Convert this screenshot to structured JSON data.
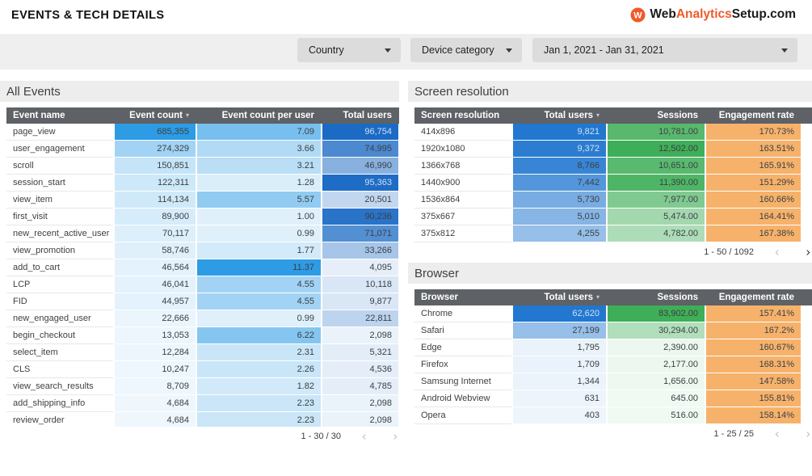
{
  "page": {
    "title": "EVENTS & TECH DETAILS"
  },
  "logo": {
    "icon": "w-badge",
    "segments": [
      {
        "text": "Web",
        "color": "#1b1b1b"
      },
      {
        "text": "Analytics",
        "color": "#f05a28"
      },
      {
        "text": "Setup",
        "color": "#1b1b1b"
      },
      {
        "text": ".com",
        "color": "#1b1b1b"
      }
    ]
  },
  "filters": {
    "country": {
      "label": "Country"
    },
    "device": {
      "label": "Device category"
    },
    "date_range": {
      "label": "Jan 1, 2021 - Jan 31, 2021"
    }
  },
  "colors": {
    "table_header_bg": "#5e6165",
    "section_band_bg": "#ededed",
    "filter_bar_bg": "#efefef",
    "dropdown_bg": "#dcdcdc",
    "heat_blue_bright": "#2d9ce5",
    "heat_blue_dark": "#1b6ac4",
    "heat_blue_right": "#2277d0",
    "heat_green": "#3fae58",
    "heat_orange": "#f6b26b",
    "brand_orange": "#f05a28"
  },
  "sections": {
    "all_events": {
      "title": "All Events",
      "columns": [
        {
          "label": "Event name",
          "align": "left"
        },
        {
          "label": "Event count",
          "align": "right",
          "heat": "heat_blue_bright",
          "sorted": true
        },
        {
          "label": "Event count per user",
          "align": "right",
          "heat": "heat_blue_bright"
        },
        {
          "label": "Total users",
          "align": "right",
          "heat": "heat_blue_dark",
          "light_text_threshold": 0.95
        }
      ],
      "rows": [
        [
          "page_view",
          "685,355",
          "7.09",
          "96,754"
        ],
        [
          "user_engagement",
          "274,329",
          "3.66",
          "74,995"
        ],
        [
          "scroll",
          "150,851",
          "3.21",
          "46,990"
        ],
        [
          "session_start",
          "122,311",
          "1.28",
          "95,363"
        ],
        [
          "view_item",
          "114,134",
          "5.57",
          "20,501"
        ],
        [
          "first_visit",
          "89,900",
          "1.00",
          "90,236"
        ],
        [
          "new_recent_active_user",
          "70,117",
          "0.99",
          "71,071"
        ],
        [
          "view_promotion",
          "58,746",
          "1.77",
          "33,266"
        ],
        [
          "add_to_cart",
          "46,564",
          "11.37",
          "4,095"
        ],
        [
          "LCP",
          "46,041",
          "4.55",
          "10,118"
        ],
        [
          "FID",
          "44,957",
          "4.55",
          "9,877"
        ],
        [
          "new_engaged_user",
          "22,666",
          "0.99",
          "22,811"
        ],
        [
          "begin_checkout",
          "13,053",
          "6.22",
          "2,098"
        ],
        [
          "select_item",
          "12,284",
          "2.31",
          "5,321"
        ],
        [
          "CLS",
          "10,247",
          "2.26",
          "4,536"
        ],
        [
          "view_search_results",
          "8,709",
          "1.82",
          "4,785"
        ],
        [
          "add_shipping_info",
          "4,684",
          "2.23",
          "2,098"
        ],
        [
          "review_order",
          "4,684",
          "2.23",
          "2,098"
        ]
      ],
      "pagination": {
        "label": "1 - 30 / 30",
        "prev_enabled": false,
        "next_enabled": false
      }
    },
    "screen_resolution": {
      "title": "Screen resolution",
      "columns": [
        {
          "label": "Screen resolution",
          "align": "left"
        },
        {
          "label": "Total users",
          "align": "right",
          "heat": "heat_blue_right",
          "sorted": true,
          "light_text_threshold": 0.95
        },
        {
          "label": "Sessions",
          "align": "right",
          "heat": "heat_green"
        },
        {
          "label": "Engagement rate",
          "align": "right",
          "heat": "uniform_orange"
        }
      ],
      "rows": [
        [
          "414x896",
          "9,821",
          "10,781.00",
          "170.73%"
        ],
        [
          "1920x1080",
          "9,372",
          "12,502.00",
          "163.51%"
        ],
        [
          "1366x768",
          "8,766",
          "10,651.00",
          "165.91%"
        ],
        [
          "1440x900",
          "7,442",
          "11,390.00",
          "151.29%"
        ],
        [
          "1536x864",
          "5,730",
          "7,977.00",
          "160.66%"
        ],
        [
          "375x667",
          "5,010",
          "5,474.00",
          "164.41%"
        ],
        [
          "375x812",
          "4,255",
          "4,782.00",
          "167.38%"
        ]
      ],
      "pagination": {
        "label": "1 - 50 / 1092",
        "prev_enabled": false,
        "next_enabled": true
      }
    },
    "browser": {
      "title": "Browser",
      "columns": [
        {
          "label": "Browser",
          "align": "left"
        },
        {
          "label": "Total users",
          "align": "right",
          "heat": "heat_blue_right",
          "sorted": true,
          "light_text_threshold": 0.95
        },
        {
          "label": "Sessions",
          "align": "right",
          "heat": "heat_green"
        },
        {
          "label": "Engagement rate",
          "align": "right",
          "heat": "uniform_orange"
        }
      ],
      "rows": [
        [
          "Chrome",
          "62,620",
          "83,902.00",
          "157.41%"
        ],
        [
          "Safari",
          "27,199",
          "30,294.00",
          "167.2%"
        ],
        [
          "Edge",
          "1,795",
          "2,390.00",
          "160.67%"
        ],
        [
          "Firefox",
          "1,709",
          "2,177.00",
          "168.31%"
        ],
        [
          "Samsung Internet",
          "1,344",
          "1,656.00",
          "147.58%"
        ],
        [
          "Android Webview",
          "631",
          "645.00",
          "155.81%"
        ],
        [
          "Opera",
          "403",
          "516.00",
          "158.14%"
        ]
      ],
      "pagination": {
        "label": "1 - 25 / 25",
        "prev_enabled": false,
        "next_enabled": false
      }
    }
  }
}
